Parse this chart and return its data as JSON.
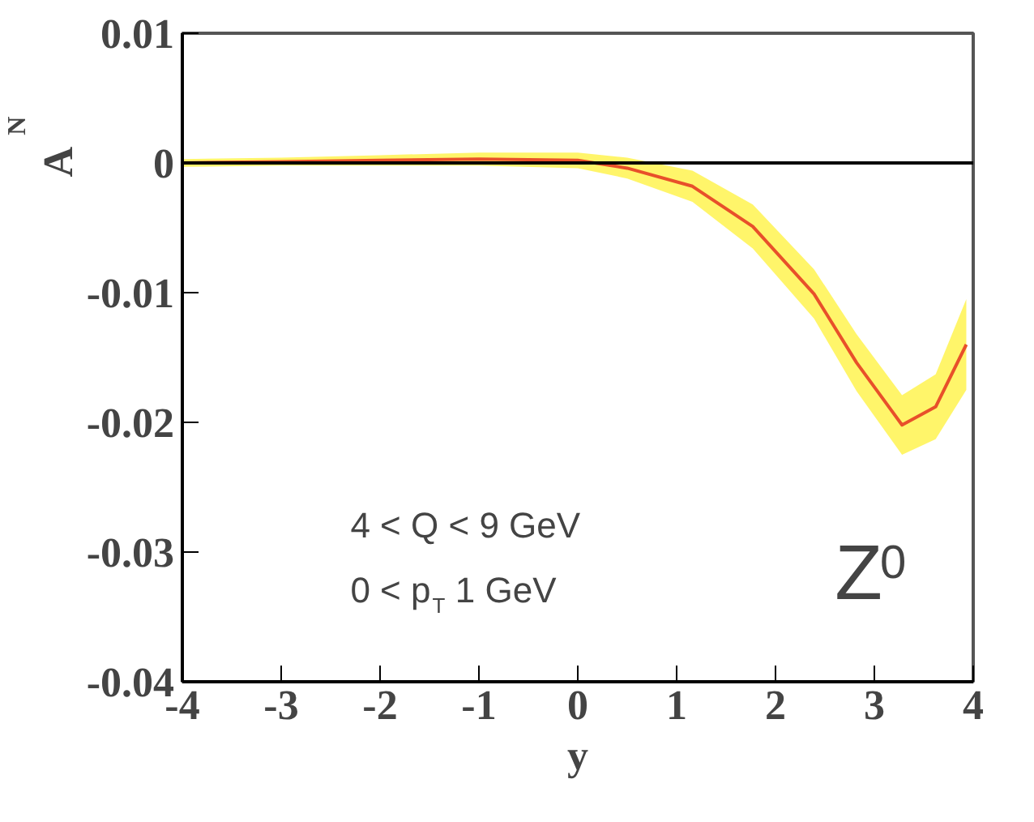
{
  "chart_data": {
    "type": "line",
    "ylabel": "A$_{N}$",
    "xlabel": "y",
    "x": [
      -4,
      -3,
      -2,
      -1,
      0,
      0.5,
      1.16,
      1.77,
      2.39,
      2.82,
      3.28,
      3.62,
      3.93
    ],
    "series": [
      {
        "color": "#e8502a",
        "values": [
          0,
          0.0001,
          0.0002,
          0.0003,
          0.0002,
          -0.0004,
          -0.0018,
          -0.0049,
          -0.0101,
          -0.0154,
          -0.0202,
          -0.0188,
          -0.014
        ],
        "lower": [
          -0.0003,
          -0.0002,
          -0.0002,
          -0.0002,
          -0.0004,
          -0.0012,
          -0.003,
          -0.0066,
          -0.012,
          -0.0176,
          -0.0225,
          -0.0213,
          -0.0175
        ],
        "upper": [
          0.0003,
          0.0004,
          0.0006,
          0.0008,
          0.0008,
          0.0004,
          -0.0006,
          -0.0032,
          -0.0082,
          -0.0132,
          -0.0179,
          -0.0163,
          -0.0105
        ]
      }
    ],
    "xlim": [
      -4,
      4
    ],
    "ylim": [
      -0.04,
      0.01
    ],
    "xticks": [
      -4,
      -3,
      -2,
      -1,
      0,
      1,
      2,
      3,
      4
    ],
    "yticks": [
      -0.04,
      -0.03,
      -0.02,
      -0.01,
      0,
      0.01
    ],
    "ref_lines": [
      {
        "axis": "y",
        "value": 0,
        "color": "#000000"
      }
    ],
    "annotations": [
      {
        "text": "4 < Q < 9 GeV"
      },
      {
        "text": "0 < p$_{T}$ 1 GeV"
      },
      {
        "text": "Z$^{0}$"
      }
    ],
    "grid": false,
    "marker": "none",
    "line_style": "solid"
  }
}
